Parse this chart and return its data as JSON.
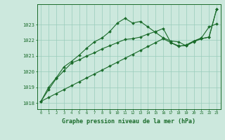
{
  "title": "Graphe pression niveau de la mer (hPa)",
  "bg_color": "#cce8dd",
  "grid_color": "#99ccbb",
  "line_color": "#1a6b2a",
  "x_labels": [
    "0",
    "1",
    "2",
    "3",
    "4",
    "5",
    "6",
    "7",
    "8",
    "9",
    "10",
    "11",
    "12",
    "13",
    "14",
    "15",
    "16",
    "17",
    "18",
    "19",
    "20",
    "21",
    "22",
    "23"
  ],
  "ylim": [
    1017.6,
    1024.3
  ],
  "yticks": [
    1018,
    1019,
    1020,
    1021,
    1022,
    1023
  ],
  "series_straight": [
    1018.1,
    1018.35,
    1018.6,
    1018.85,
    1019.1,
    1019.35,
    1019.6,
    1019.85,
    1020.1,
    1020.35,
    1020.6,
    1020.85,
    1021.1,
    1021.35,
    1021.6,
    1021.85,
    1022.1,
    1021.85,
    1021.6,
    1021.7,
    1021.95,
    1022.1,
    1022.2,
    1024.0
  ],
  "series_peak": [
    1018.1,
    1019.0,
    1019.6,
    1020.3,
    1020.65,
    1021.05,
    1021.5,
    1021.9,
    1022.15,
    1022.55,
    1023.1,
    1023.4,
    1023.1,
    1023.2,
    1022.85,
    1022.5,
    1022.15,
    1021.95,
    1021.9,
    1021.65,
    1021.95,
    1022.15,
    1022.85,
    1023.05
  ],
  "series_mid": [
    1018.1,
    1018.85,
    1019.55,
    1020.05,
    1020.55,
    1020.75,
    1021.0,
    1021.2,
    1021.45,
    1021.65,
    1021.85,
    1022.05,
    1022.1,
    1022.2,
    1022.4,
    1022.55,
    1022.75,
    1021.85,
    1021.65,
    1021.65,
    1021.9,
    1022.1,
    1022.2,
    1024.0
  ]
}
